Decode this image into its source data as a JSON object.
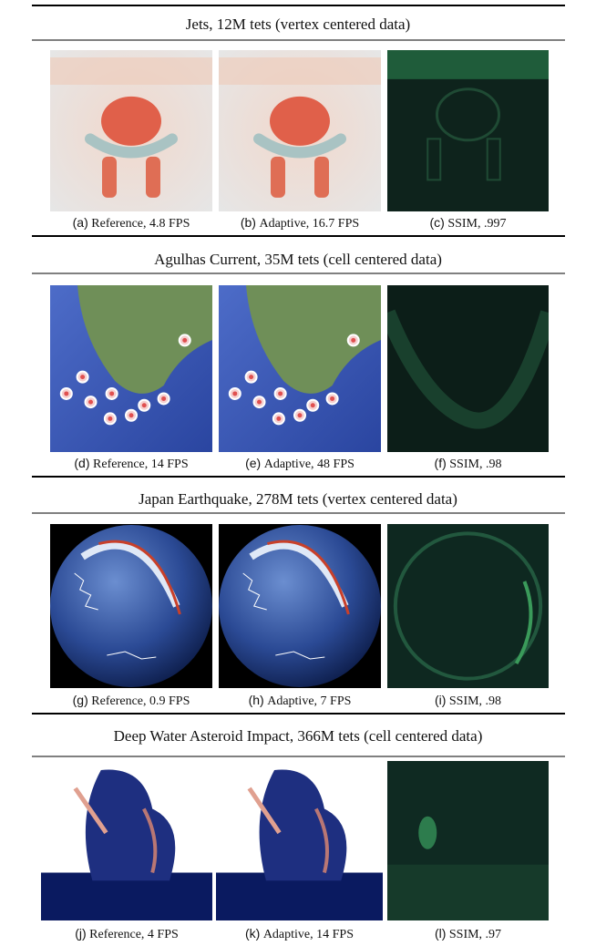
{
  "sections": [
    {
      "title": "Jets, 12M tets (vertex centered data)",
      "panels": [
        {
          "label": "(a)",
          "text": "Reference, 4.8 FPS"
        },
        {
          "label": "(b)",
          "text": "Adaptive, 16.7 FPS"
        },
        {
          "label": "(c)",
          "text": "SSIM, .997"
        }
      ]
    },
    {
      "title": "Agulhas Current, 35M tets (cell centered data)",
      "panels": [
        {
          "label": "(d)",
          "text": "Reference, 14 FPS"
        },
        {
          "label": "(e)",
          "text": "Adaptive, 48 FPS"
        },
        {
          "label": "(f)",
          "text": "SSIM, .98"
        }
      ]
    },
    {
      "title": "Japan Earthquake, 278M tets (vertex centered data)",
      "panels": [
        {
          "label": "(g)",
          "text": "Reference, 0.9 FPS"
        },
        {
          "label": "(h)",
          "text": "Adaptive, 7 FPS"
        },
        {
          "label": "(i)",
          "text": "SSIM, .98"
        }
      ]
    },
    {
      "title": "Deep Water Asteroid Impact, 366M tets (cell centered data)",
      "panels": [
        {
          "label": "(j)",
          "text": "Reference, 4 FPS"
        },
        {
          "label": "(k)",
          "text": "Adaptive, 14 FPS"
        },
        {
          "label": "(l)",
          "text": "SSIM, .97"
        }
      ]
    }
  ]
}
